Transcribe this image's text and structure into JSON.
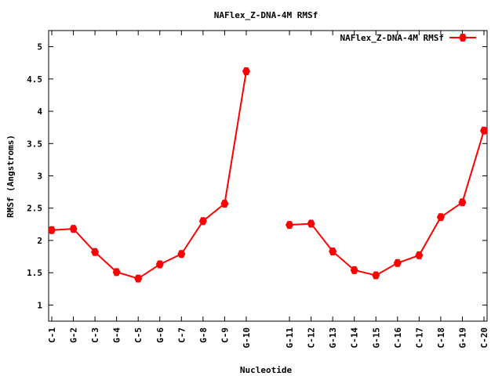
{
  "chart_data": {
    "type": "line",
    "title": "NAFlex_Z-DNA-4M RMSf",
    "xlabel": "Nucleotide",
    "ylabel": "RMSf (Angstroms)",
    "ylim": [
      0.75,
      5.25
    ],
    "yticks": [
      1,
      1.5,
      2,
      2.5,
      3,
      3.5,
      4,
      4.5,
      5
    ],
    "ytick_labels": [
      "1",
      "1.5",
      "2",
      "2.5",
      "3",
      "3.5",
      "4",
      "4.5",
      "5"
    ],
    "xlim": [
      1,
      21
    ],
    "grid": false,
    "legend": "top-right",
    "series_color": "#ff0000",
    "tick_labels": [
      {
        "x": 1,
        "label": "C-1"
      },
      {
        "x": 2,
        "label": "G-2"
      },
      {
        "x": 3,
        "label": "C-3"
      },
      {
        "x": 4,
        "label": "G-4"
      },
      {
        "x": 5,
        "label": "C-5"
      },
      {
        "x": 6,
        "label": "G-6"
      },
      {
        "x": 7,
        "label": "C-7"
      },
      {
        "x": 8,
        "label": "G-8"
      },
      {
        "x": 9,
        "label": "C-9"
      },
      {
        "x": 10,
        "label": "G-10"
      },
      {
        "x": 12,
        "label": "G-11"
      },
      {
        "x": 13,
        "label": "C-12"
      },
      {
        "x": 14,
        "label": "G-13"
      },
      {
        "x": 15,
        "label": "C-14"
      },
      {
        "x": 16,
        "label": "G-15"
      },
      {
        "x": 17,
        "label": "C-16"
      },
      {
        "x": 18,
        "label": "C-17"
      },
      {
        "x": 19,
        "label": "C-18"
      },
      {
        "x": 20,
        "label": "G-19"
      },
      {
        "x": 21,
        "label": "C-20"
      }
    ],
    "series": [
      {
        "name": "NAFlex_Z-DNA-4M RMSf",
        "segments": [
          {
            "x": [
              1,
              2,
              3,
              4,
              5,
              6,
              7,
              8,
              9,
              10
            ],
            "y": [
              2.16,
              2.18,
              1.82,
              1.51,
              1.41,
              1.63,
              1.79,
              2.3,
              2.57,
              4.62
            ]
          },
          {
            "x": [
              12,
              13,
              14,
              15,
              16,
              17,
              18,
              19,
              20,
              21
            ],
            "y": [
              2.24,
              2.26,
              1.83,
              1.54,
              1.46,
              1.65,
              1.77,
              2.36,
              2.59,
              3.7
            ]
          }
        ]
      }
    ]
  }
}
